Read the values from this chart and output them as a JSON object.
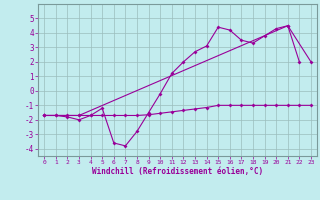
{
  "xlabel": "Windchill (Refroidissement éolien,°C)",
  "bg_color": "#c2ecee",
  "line_color": "#990099",
  "grid_color": "#9bbdbd",
  "xlim": [
    -0.5,
    23.5
  ],
  "ylim": [
    -4.5,
    6.0
  ],
  "xticks": [
    0,
    1,
    2,
    3,
    4,
    5,
    6,
    7,
    8,
    9,
    10,
    11,
    12,
    13,
    14,
    15,
    16,
    17,
    18,
    19,
    20,
    21,
    22,
    23
  ],
  "yticks": [
    -4,
    -3,
    -2,
    -1,
    0,
    1,
    2,
    3,
    4,
    5
  ],
  "line1_x": [
    0,
    1,
    2,
    3,
    4,
    5,
    6,
    7,
    8,
    9,
    10,
    11,
    12,
    13,
    14,
    15,
    16,
    17,
    18,
    19,
    20,
    21,
    22,
    23
  ],
  "line1_y": [
    -1.7,
    -1.7,
    -1.7,
    -1.7,
    -1.7,
    -1.7,
    -1.7,
    -1.7,
    -1.7,
    -1.65,
    -1.55,
    -1.45,
    -1.35,
    -1.25,
    -1.15,
    -1.0,
    -1.0,
    -1.0,
    -1.0,
    -1.0,
    -1.0,
    -1.0,
    -1.0,
    -1.0
  ],
  "line2_x": [
    0,
    1,
    2,
    3,
    4,
    5,
    6,
    7,
    8,
    9,
    10,
    11,
    12,
    13,
    14,
    15,
    16,
    17,
    18,
    19,
    20,
    21,
    22
  ],
  "line2_y": [
    -1.7,
    -1.7,
    -1.8,
    -2.0,
    -1.7,
    -1.2,
    -3.6,
    -3.8,
    -2.8,
    -1.5,
    -0.2,
    1.2,
    2.0,
    2.7,
    3.1,
    4.4,
    4.2,
    3.5,
    3.3,
    3.8,
    4.3,
    4.5,
    2.0
  ],
  "line3_x": [
    0,
    3,
    21,
    23
  ],
  "line3_y": [
    -1.7,
    -1.7,
    4.5,
    2.0
  ]
}
